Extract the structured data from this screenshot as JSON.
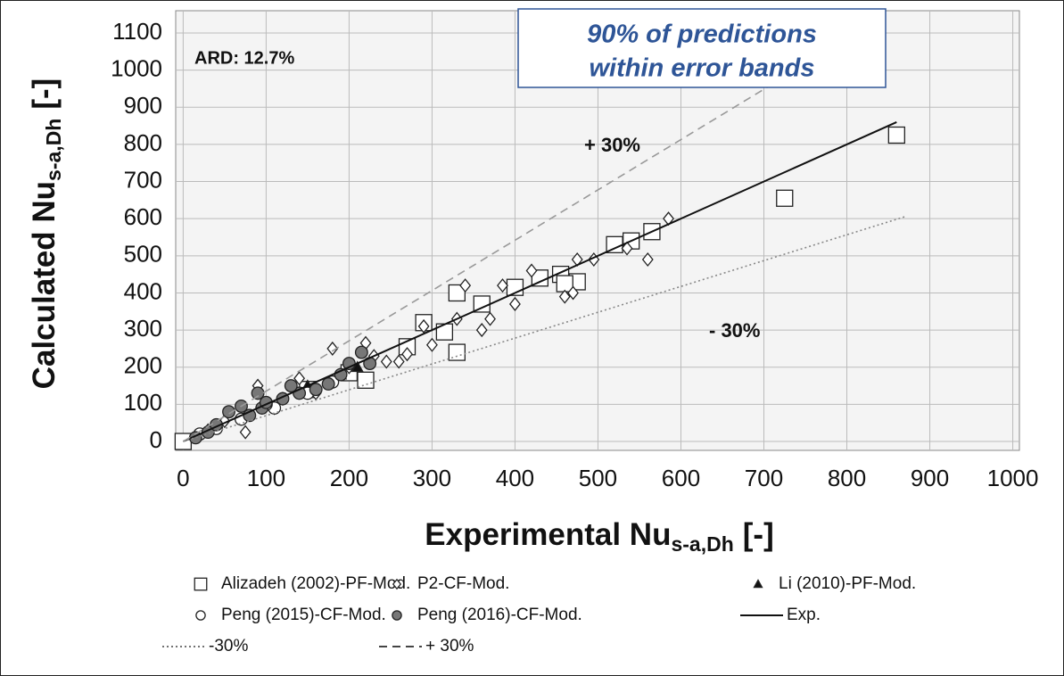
{
  "chart_data": {
    "type": "scatter",
    "xlabel": [
      "Experimental Nu",
      "s-a,Dh",
      "[-]"
    ],
    "ylabel": [
      "Calculated Nu",
      "s-a,Dh",
      "[-]"
    ],
    "annotations": [
      "ARD: 12.7%",
      "+ 30%",
      "- 30%",
      "90% of predictions",
      "within error bands"
    ],
    "xlim": [
      -9,
      1008
    ],
    "ylim": [
      -24,
      1160
    ],
    "xticks": [
      0,
      100,
      200,
      300,
      400,
      500,
      600,
      700,
      800,
      900,
      1000
    ],
    "yticks": [
      0,
      100,
      200,
      300,
      400,
      500,
      600,
      700,
      800,
      900,
      1000,
      1100
    ],
    "grid": true,
    "series": [
      {
        "name": "Alizadeh (2002)-PF-Mod.",
        "marker": "square",
        "color": "#ffffff",
        "x": [
          0,
          330,
          330,
          220,
          315,
          400,
          430,
          455,
          475,
          520,
          540,
          565,
          725,
          860,
          270,
          200,
          150,
          290,
          360,
          460
        ],
        "values": [
          0,
          400,
          240,
          165,
          295,
          415,
          440,
          450,
          430,
          530,
          540,
          565,
          655,
          825,
          255,
          185,
          140,
          320,
          370,
          425
        ]
      },
      {
        "name": "P2-CF-Mod.",
        "marker": "diamond",
        "color": "#ffffff",
        "x": [
          75,
          90,
          140,
          180,
          220,
          260,
          300,
          340,
          330,
          360,
          370,
          385,
          400,
          420,
          460,
          470,
          475,
          495,
          535,
          560,
          585,
          290,
          270,
          230,
          160,
          120,
          50,
          30,
          200,
          110,
          245
        ],
        "values": [
          25,
          150,
          170,
          250,
          265,
          215,
          260,
          420,
          330,
          300,
          330,
          420,
          370,
          460,
          390,
          400,
          490,
          490,
          520,
          490,
          600,
          310,
          235,
          230,
          130,
          115,
          55,
          30,
          200,
          90,
          215
        ]
      },
      {
        "name": "Li (2010)-PF-Mod.",
        "marker": "triangle",
        "color": "#111111",
        "x": [
          150,
          190,
          210
        ],
        "values": [
          150,
          180,
          200
        ]
      },
      {
        "name": "Peng (2015)-CF-Mod.",
        "marker": "circle",
        "color": "#ffffff",
        "x": [
          20,
          40,
          70,
          110,
          150,
          180,
          100
        ],
        "values": [
          20,
          35,
          60,
          90,
          130,
          160,
          100
        ]
      },
      {
        "name": "Peng (2016)-CF-Mod.",
        "marker": "circle",
        "color": "#777777",
        "x": [
          15,
          30,
          40,
          55,
          70,
          90,
          95,
          120,
          140,
          160,
          175,
          190,
          200,
          215,
          225,
          100,
          130,
          80
        ],
        "values": [
          10,
          25,
          45,
          80,
          95,
          130,
          90,
          115,
          130,
          140,
          155,
          180,
          210,
          240,
          210,
          105,
          150,
          70
        ]
      },
      {
        "name": "Exp.",
        "marker": "line",
        "style": "solid",
        "color": "#111111",
        "x": [
          0,
          860
        ],
        "values": [
          0,
          860
        ]
      },
      {
        "name": "-30%",
        "marker": "line",
        "style": "dotted",
        "color": "#888888",
        "x": [
          0,
          871
        ],
        "values": [
          0,
          606
        ]
      },
      {
        "name": "+ 30%",
        "marker": "line",
        "style": "dashed",
        "color": "#999999",
        "x": [
          0,
          713
        ],
        "values": [
          0,
          966
        ]
      }
    ]
  }
}
